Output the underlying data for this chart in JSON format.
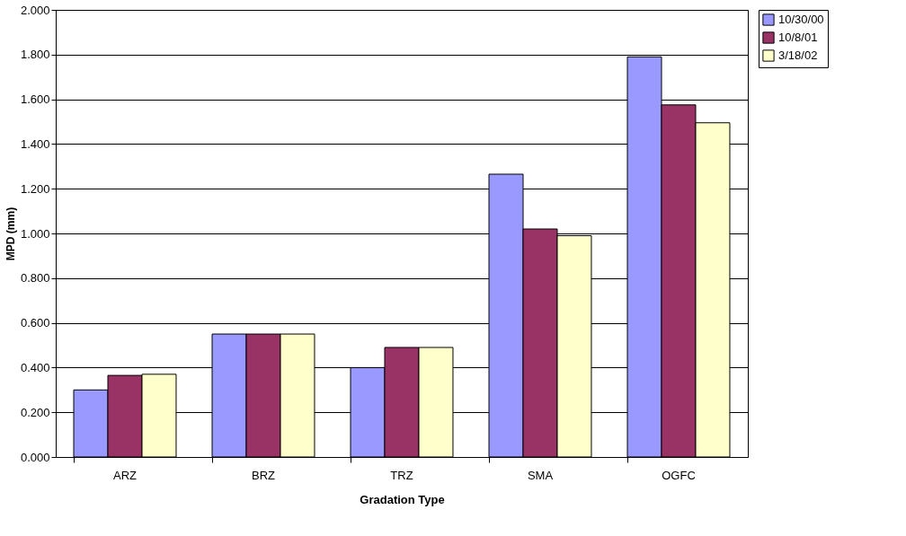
{
  "chart_data": {
    "type": "bar",
    "xlabel": "Gradation Type",
    "ylabel": "MPD (mm)",
    "categories": [
      "ARZ",
      "BRZ",
      "TRZ",
      "SMA",
      "OGFC"
    ],
    "series": [
      {
        "name": "10/30/00",
        "color": "#9999ff",
        "values": [
          0.3,
          0.55,
          0.4,
          1.265,
          1.79
        ]
      },
      {
        "name": "10/8/01",
        "color": "#993366",
        "values": [
          0.365,
          0.55,
          0.49,
          1.02,
          1.575
        ]
      },
      {
        "name": "3/18/02",
        "color": "#ffffcc",
        "values": [
          0.37,
          0.55,
          0.49,
          0.99,
          1.495
        ]
      }
    ],
    "ylim": [
      0,
      2
    ],
    "yticks": [
      {
        "value": 0,
        "label": "0.000"
      },
      {
        "value": 0.2,
        "label": "0.200"
      },
      {
        "value": 0.4,
        "label": "0.400"
      },
      {
        "value": 0.6,
        "label": "0.600"
      },
      {
        "value": 0.8,
        "label": "0.800"
      },
      {
        "value": 1.0,
        "label": "1.000"
      },
      {
        "value": 1.2,
        "label": "1.200"
      },
      {
        "value": 1.4,
        "label": "1.400"
      },
      {
        "value": 1.6,
        "label": "1.600"
      },
      {
        "value": 1.8,
        "label": "1.800"
      },
      {
        "value": 2.0,
        "label": "2.000"
      }
    ],
    "grid": "y",
    "legend": "right"
  }
}
